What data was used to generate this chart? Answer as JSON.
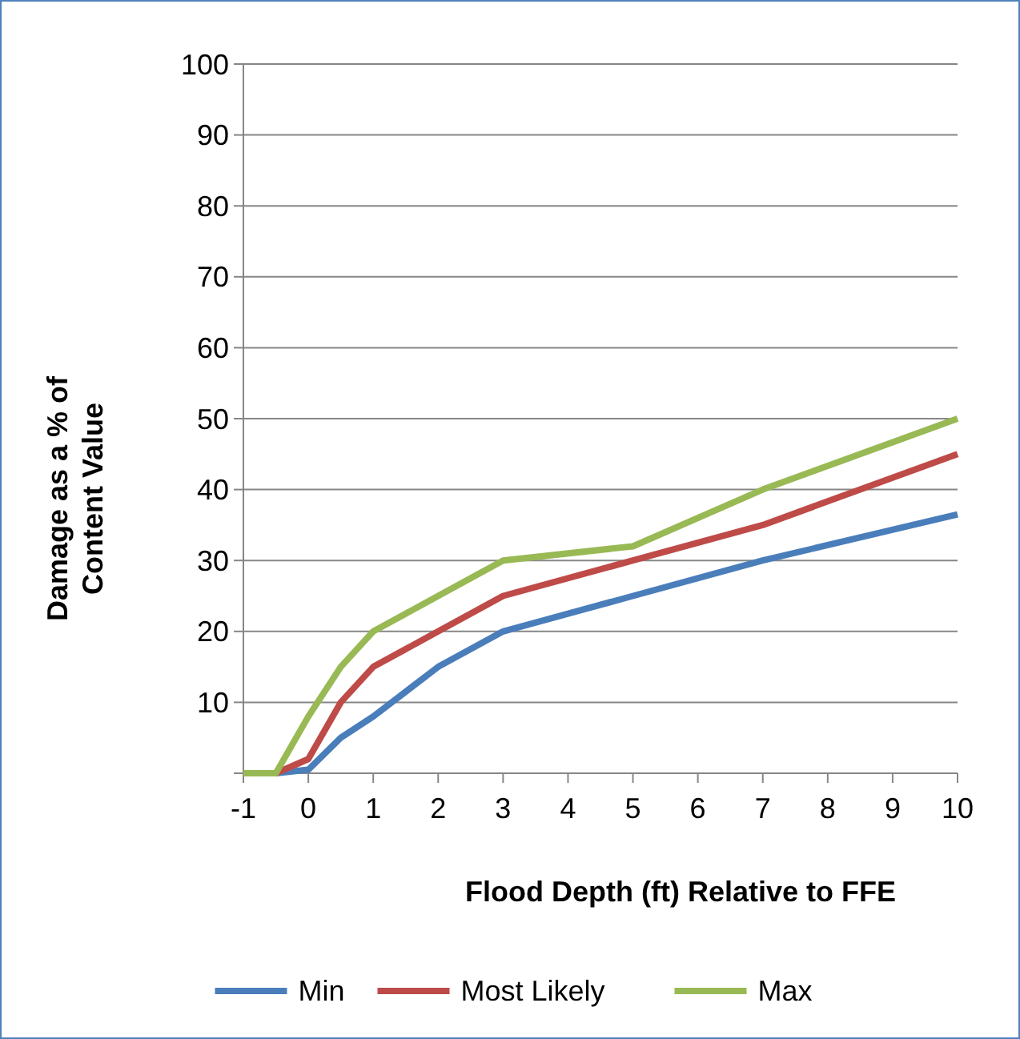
{
  "chart_data": {
    "type": "line",
    "xlabel": "Flood Depth (ft) Relative to FFE",
    "ylabel": "Damage as a % of Content Value",
    "x": [
      -1,
      -0.5,
      0,
      0.5,
      1,
      2,
      3,
      5,
      7,
      10
    ],
    "series": [
      {
        "name": "Min",
        "color": "#4a7ebb",
        "values": [
          0,
          0,
          0.5,
          5,
          8,
          15,
          20,
          25,
          30,
          36.5
        ]
      },
      {
        "name": "Most Likely",
        "color": "#be4b48",
        "values": [
          0,
          0,
          2,
          10,
          15,
          20,
          25,
          30,
          35,
          45
        ]
      },
      {
        "name": "Max",
        "color": "#98b954",
        "values": [
          0,
          0,
          8,
          15,
          20,
          25,
          30,
          32,
          40,
          50
        ]
      }
    ],
    "xlim": [
      -1,
      10
    ],
    "xticks": [
      -1,
      0,
      1,
      2,
      3,
      4,
      5,
      6,
      7,
      8,
      9,
      10
    ],
    "ylim": [
      0,
      100
    ],
    "yticks": [
      {
        "value": 0,
        "label": null
      },
      10,
      20,
      30,
      40,
      50,
      60,
      70,
      80,
      90,
      100
    ],
    "grid": "y",
    "legend": "bottom",
    "marker": "none",
    "line_style": "solid"
  }
}
